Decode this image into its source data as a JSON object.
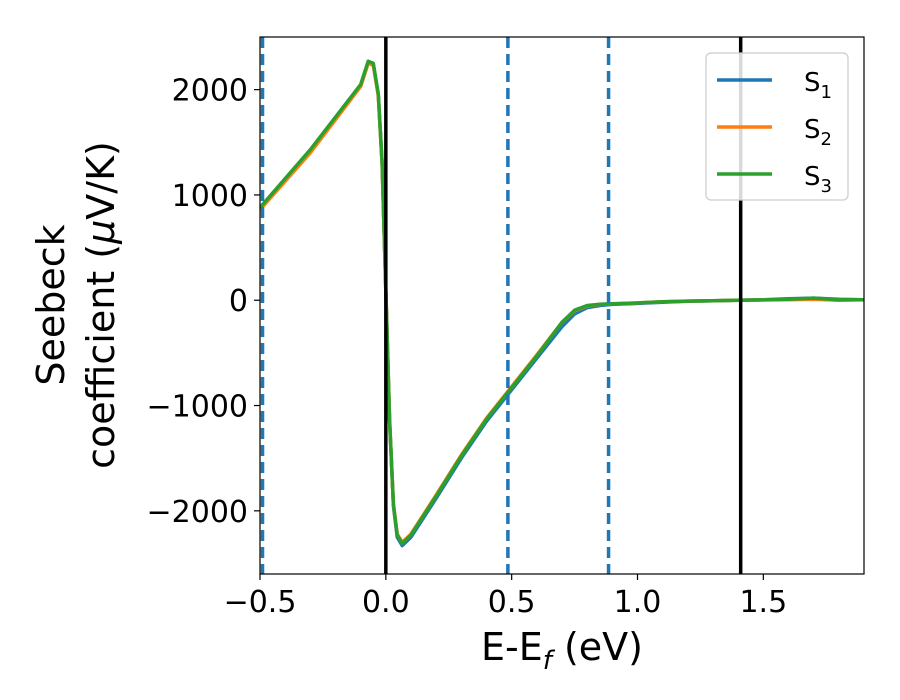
{
  "chart_data": {
    "type": "line",
    "xlabel": "E-E_f (eV)",
    "xlabel_main": "E-E",
    "xlabel_sub": "f",
    "xlabel_tail": " (eV)",
    "ylabel_line1": "Seebeck",
    "ylabel_line2_text": "coefficient  (",
    "ylabel_line2_mu": "μ",
    "ylabel_line2_tail": "V/K)",
    "xlim": [
      -0.5,
      1.9
    ],
    "ylim": [
      -2600,
      2500
    ],
    "xticks": [
      -0.5,
      0.0,
      0.5,
      1.0,
      1.5
    ],
    "xtick_labels": [
      "−0.5",
      "0.0",
      "0.5",
      "1.0",
      "1.5"
    ],
    "yticks": [
      -2000,
      -1000,
      0,
      1000,
      2000
    ],
    "ytick_labels": [
      "−2000",
      "−1000",
      "0",
      "1000",
      "2000"
    ],
    "legend_position": "top-right",
    "series": [
      {
        "name": "S",
        "sub": "1",
        "color": "#1f77b4",
        "x": [
          -0.5,
          -0.3,
          -0.1,
          -0.07,
          -0.05,
          -0.03,
          -0.015,
          0.0,
          0.015,
          0.03,
          0.045,
          0.065,
          0.1,
          0.2,
          0.3,
          0.4,
          0.5,
          0.6,
          0.7,
          0.75,
          0.8,
          0.85,
          0.9,
          1.0,
          1.1,
          1.2,
          1.3,
          1.4,
          1.5,
          1.6,
          1.7,
          1.8,
          1.9
        ],
        "y": [
          870,
          1420,
          2040,
          2260,
          2240,
          1950,
          1300,
          100,
          -1150,
          -1950,
          -2250,
          -2330,
          -2250,
          -1880,
          -1500,
          -1150,
          -850,
          -550,
          -250,
          -130,
          -70,
          -50,
          -40,
          -30,
          -20,
          -10,
          -5,
          0,
          5,
          15,
          20,
          10,
          5
        ]
      },
      {
        "name": "S",
        "sub": "2",
        "color": "#ff7f0e",
        "x": [
          -0.5,
          -0.3,
          -0.1,
          -0.07,
          -0.05,
          -0.03,
          -0.015,
          0.0,
          0.015,
          0.03,
          0.045,
          0.065,
          0.1,
          0.2,
          0.3,
          0.4,
          0.5,
          0.6,
          0.7,
          0.75,
          0.8,
          0.85,
          0.9,
          1.0,
          1.1,
          1.2,
          1.3,
          1.4,
          1.5,
          1.6,
          1.7,
          1.8,
          1.9
        ],
        "y": [
          860,
          1400,
          2030,
          2250,
          2230,
          1940,
          1290,
          100,
          -1140,
          -1930,
          -2220,
          -2300,
          -2220,
          -1850,
          -1470,
          -1120,
          -820,
          -520,
          -210,
          -100,
          -55,
          -40,
          -35,
          -25,
          -15,
          -8,
          -5,
          0,
          3,
          5,
          10,
          0,
          5
        ]
      },
      {
        "name": "S",
        "sub": "3",
        "color": "#2ca02c",
        "x": [
          -0.5,
          -0.3,
          -0.1,
          -0.07,
          -0.05,
          -0.03,
          -0.015,
          0.0,
          0.015,
          0.03,
          0.045,
          0.065,
          0.1,
          0.2,
          0.3,
          0.4,
          0.5,
          0.6,
          0.7,
          0.75,
          0.8,
          0.85,
          0.9,
          1.0,
          1.1,
          1.2,
          1.3,
          1.4,
          1.5,
          1.6,
          1.7,
          1.8,
          1.9
        ],
        "y": [
          880,
          1430,
          2050,
          2270,
          2250,
          1960,
          1310,
          100,
          -1140,
          -1940,
          -2230,
          -2310,
          -2230,
          -1860,
          -1480,
          -1130,
          -830,
          -530,
          -210,
          -95,
          -50,
          -38,
          -33,
          -25,
          -15,
          -8,
          -5,
          0,
          3,
          10,
          20,
          5,
          5
        ]
      }
    ],
    "vlines_solid": [
      0.0,
      1.41
    ],
    "vlines_dashed": [
      -0.49,
      0.485,
      0.885
    ],
    "vline_solid_color": "#000000",
    "vline_dashed_color": "#1f77b4",
    "grid": false
  }
}
